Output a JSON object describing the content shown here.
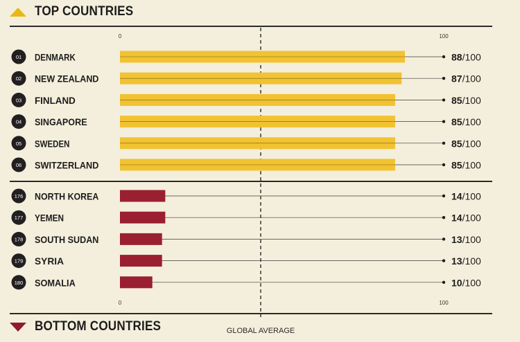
{
  "top_header": "TOP COUNTRIES",
  "bottom_header": "BOTTOM COUNTRIES",
  "colors": {
    "top_bar": "#f1c232",
    "bottom_bar": "#9a1f30",
    "rank_circle": "#231f20",
    "background": "#f4efdc"
  },
  "chart_data": {
    "type": "bar",
    "orientation": "horizontal",
    "xlim": [
      0,
      100
    ],
    "axis_ticks": [
      "0",
      "100"
    ],
    "reference_line": {
      "label": "GLOBAL AVERAGE"
    },
    "score_suffix": "/100",
    "groups": [
      {
        "name": "TOP COUNTRIES",
        "items": [
          {
            "rank": "01",
            "country": "DENMARK",
            "value": 88
          },
          {
            "rank": "02",
            "country": "NEW ZEALAND",
            "value": 87
          },
          {
            "rank": "03",
            "country": "FINLAND",
            "value": 85
          },
          {
            "rank": "04",
            "country": "SINGAPORE",
            "value": 85
          },
          {
            "rank": "05",
            "country": "SWEDEN",
            "value": 85
          },
          {
            "rank": "06",
            "country": "SWITZERLAND",
            "value": 85
          }
        ]
      },
      {
        "name": "BOTTOM COUNTRIES",
        "items": [
          {
            "rank": "176",
            "country": "NORTH KOREA",
            "value": 14
          },
          {
            "rank": "177",
            "country": "YEMEN",
            "value": 14
          },
          {
            "rank": "178",
            "country": "SOUTH SUDAN",
            "value": 13
          },
          {
            "rank": "179",
            "country": "SYRIA",
            "value": 13
          },
          {
            "rank": "180",
            "country": "SOMALIA",
            "value": 10
          }
        ]
      }
    ]
  }
}
